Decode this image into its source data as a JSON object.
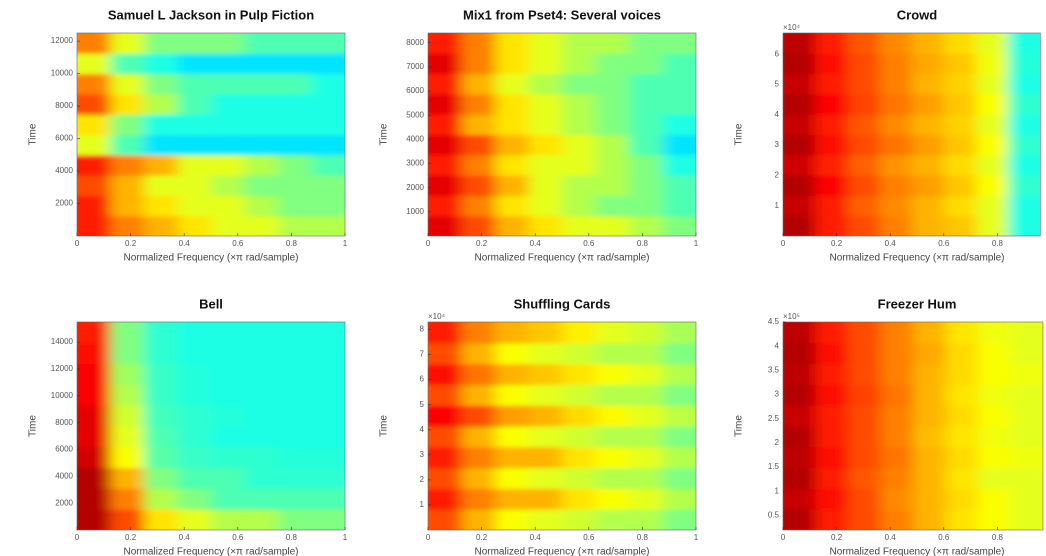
{
  "chart_data": [
    {
      "type": "spectrogram",
      "title": "Samuel L Jackson in Pulp Fiction",
      "xlabel": "Normalized Frequency  (×π rad/sample)",
      "ylabel": "Time",
      "colormap": "jet",
      "xlim": [
        0,
        1
      ],
      "xticks": [
        0,
        0.2,
        0.4,
        0.6,
        0.8,
        1
      ],
      "ylim": [
        0,
        12500
      ],
      "yticks": [
        2000,
        4000,
        6000,
        8000,
        10000,
        12000
      ],
      "z": [
        [
          0.85,
          0.75,
          0.7,
          0.65,
          0.6,
          0.6,
          0.55,
          0.55
        ],
        [
          0.85,
          0.7,
          0.65,
          0.6,
          0.6,
          0.55,
          0.5,
          0.5
        ],
        [
          0.8,
          0.7,
          0.6,
          0.6,
          0.55,
          0.5,
          0.5,
          0.5
        ],
        [
          0.85,
          0.75,
          0.7,
          0.6,
          0.6,
          0.55,
          0.5,
          0.45
        ],
        [
          0.6,
          0.45,
          0.35,
          0.35,
          0.35,
          0.35,
          0.35,
          0.35
        ],
        [
          0.65,
          0.5,
          0.4,
          0.4,
          0.4,
          0.4,
          0.4,
          0.4
        ],
        [
          0.8,
          0.65,
          0.55,
          0.45,
          0.4,
          0.4,
          0.4,
          0.4
        ],
        [
          0.75,
          0.6,
          0.5,
          0.45,
          0.45,
          0.45,
          0.45,
          0.4
        ],
        [
          0.6,
          0.45,
          0.4,
          0.35,
          0.35,
          0.35,
          0.35,
          0.35
        ],
        [
          0.75,
          0.6,
          0.5,
          0.5,
          0.5,
          0.45,
          0.45,
          0.45
        ]
      ]
    },
    {
      "type": "spectrogram",
      "title": "Mix1 from Pset4: Several voices",
      "xlabel": "Normalized Frequency  (×π rad/sample)",
      "ylabel": "Time",
      "colormap": "jet",
      "xlim": [
        0,
        1
      ],
      "xticks": [
        0,
        0.2,
        0.4,
        0.6,
        0.8,
        1
      ],
      "ylim": [
        0,
        8400
      ],
      "yticks": [
        1000,
        2000,
        3000,
        4000,
        5000,
        6000,
        7000,
        8000
      ],
      "z": [
        [
          0.9,
          0.8,
          0.7,
          0.65,
          0.6,
          0.6,
          0.55,
          0.5
        ],
        [
          0.85,
          0.75,
          0.65,
          0.6,
          0.55,
          0.5,
          0.5,
          0.45
        ],
        [
          0.9,
          0.8,
          0.7,
          0.6,
          0.55,
          0.55,
          0.5,
          0.45
        ],
        [
          0.85,
          0.75,
          0.65,
          0.6,
          0.6,
          0.55,
          0.5,
          0.4
        ],
        [
          0.9,
          0.8,
          0.7,
          0.65,
          0.6,
          0.55,
          0.45,
          0.35
        ],
        [
          0.85,
          0.7,
          0.65,
          0.6,
          0.55,
          0.5,
          0.45,
          0.4
        ],
        [
          0.9,
          0.75,
          0.65,
          0.6,
          0.55,
          0.5,
          0.45,
          0.45
        ],
        [
          0.85,
          0.7,
          0.6,
          0.55,
          0.5,
          0.5,
          0.45,
          0.45
        ],
        [
          0.9,
          0.75,
          0.65,
          0.6,
          0.55,
          0.5,
          0.5,
          0.45
        ],
        [
          0.85,
          0.75,
          0.65,
          0.6,
          0.55,
          0.55,
          0.5,
          0.5
        ]
      ]
    },
    {
      "type": "spectrogram",
      "title": "Crowd",
      "xlabel": "Normalized Frequency  (×π rad/sample)",
      "ylabel": "Time",
      "colormap": "jet",
      "y_multiplier": "×10⁴",
      "xlim": [
        0,
        0.96
      ],
      "xticks": [
        0,
        0.2,
        0.4,
        0.6,
        0.8
      ],
      "ylim": [
        0,
        6.7
      ],
      "yticks": [
        1,
        2,
        3,
        4,
        5,
        6
      ],
      "z": [
        [
          0.95,
          0.85,
          0.8,
          0.75,
          0.7,
          0.68,
          0.6,
          0.4
        ],
        [
          0.93,
          0.85,
          0.78,
          0.74,
          0.7,
          0.66,
          0.6,
          0.4
        ],
        [
          0.95,
          0.87,
          0.8,
          0.75,
          0.72,
          0.68,
          0.62,
          0.42
        ],
        [
          0.92,
          0.84,
          0.78,
          0.73,
          0.7,
          0.66,
          0.6,
          0.4
        ],
        [
          0.95,
          0.86,
          0.8,
          0.76,
          0.72,
          0.68,
          0.62,
          0.42
        ],
        [
          0.93,
          0.85,
          0.79,
          0.74,
          0.7,
          0.67,
          0.6,
          0.4
        ],
        [
          0.95,
          0.87,
          0.81,
          0.76,
          0.72,
          0.68,
          0.62,
          0.42
        ],
        [
          0.93,
          0.85,
          0.8,
          0.75,
          0.7,
          0.67,
          0.6,
          0.4
        ],
        [
          0.95,
          0.86,
          0.8,
          0.75,
          0.71,
          0.68,
          0.61,
          0.41
        ],
        [
          0.94,
          0.85,
          0.79,
          0.74,
          0.7,
          0.66,
          0.6,
          0.4
        ]
      ]
    },
    {
      "type": "spectrogram",
      "title": "Bell",
      "xlabel": "Normalized Frequency  (×π rad/sample)",
      "ylabel": "Time",
      "colormap": "jet",
      "xlim": [
        0,
        1
      ],
      "xticks": [
        0,
        0.2,
        0.4,
        0.6,
        0.8,
        1
      ],
      "ylim": [
        0,
        15500
      ],
      "yticks": [
        2000,
        4000,
        6000,
        8000,
        10000,
        12000,
        14000
      ],
      "z": [
        [
          0.95,
          0.8,
          0.65,
          0.6,
          0.55,
          0.55,
          0.5,
          0.5
        ],
        [
          0.95,
          0.75,
          0.55,
          0.5,
          0.45,
          0.45,
          0.45,
          0.45
        ],
        [
          0.95,
          0.7,
          0.5,
          0.45,
          0.45,
          0.42,
          0.42,
          0.42
        ],
        [
          0.92,
          0.62,
          0.46,
          0.43,
          0.42,
          0.42,
          0.41,
          0.41
        ],
        [
          0.9,
          0.6,
          0.45,
          0.42,
          0.4,
          0.4,
          0.4,
          0.4
        ],
        [
          0.9,
          0.58,
          0.44,
          0.42,
          0.41,
          0.4,
          0.4,
          0.4
        ],
        [
          0.88,
          0.55,
          0.43,
          0.41,
          0.4,
          0.4,
          0.4,
          0.4
        ],
        [
          0.88,
          0.53,
          0.43,
          0.41,
          0.4,
          0.4,
          0.4,
          0.4
        ],
        [
          0.86,
          0.5,
          0.42,
          0.4,
          0.4,
          0.4,
          0.4,
          0.4
        ],
        [
          0.85,
          0.5,
          0.42,
          0.4,
          0.4,
          0.4,
          0.4,
          0.4
        ]
      ]
    },
    {
      "type": "spectrogram",
      "title": "Shuffling Cards",
      "xlabel": "Normalized Frequency  (×π rad/sample)",
      "ylabel": "Time",
      "colormap": "jet",
      "y_multiplier": "×10⁴",
      "xlim": [
        0,
        1
      ],
      "xticks": [
        0,
        0.2,
        0.4,
        0.6,
        0.8,
        1
      ],
      "ylim": [
        0,
        8.3
      ],
      "yticks": [
        1,
        2,
        3,
        4,
        5,
        6,
        7,
        8
      ],
      "z": [
        [
          0.8,
          0.7,
          0.62,
          0.6,
          0.58,
          0.55,
          0.55,
          0.5
        ],
        [
          0.85,
          0.75,
          0.7,
          0.7,
          0.65,
          0.62,
          0.6,
          0.55
        ],
        [
          0.8,
          0.7,
          0.62,
          0.6,
          0.58,
          0.55,
          0.55,
          0.5
        ],
        [
          0.85,
          0.75,
          0.7,
          0.7,
          0.65,
          0.62,
          0.6,
          0.55
        ],
        [
          0.8,
          0.7,
          0.62,
          0.6,
          0.58,
          0.55,
          0.55,
          0.5
        ],
        [
          0.88,
          0.8,
          0.72,
          0.7,
          0.66,
          0.63,
          0.6,
          0.56
        ],
        [
          0.8,
          0.7,
          0.62,
          0.6,
          0.58,
          0.55,
          0.55,
          0.5
        ],
        [
          0.86,
          0.76,
          0.7,
          0.68,
          0.65,
          0.62,
          0.6,
          0.55
        ],
        [
          0.8,
          0.7,
          0.62,
          0.6,
          0.58,
          0.55,
          0.55,
          0.5
        ],
        [
          0.85,
          0.75,
          0.7,
          0.68,
          0.64,
          0.6,
          0.58,
          0.54
        ]
      ]
    },
    {
      "type": "spectrogram",
      "title": "Freezer Hum",
      "xlabel": "Normalized Frequency  (×π rad/sample)",
      "ylabel": "Time",
      "colormap": "jet",
      "y_multiplier": "×10⁵",
      "xlim": [
        0,
        0.97
      ],
      "xticks": [
        0,
        0.2,
        0.4,
        0.6,
        0.8
      ],
      "ylim": [
        0.2,
        4.5
      ],
      "yticks": [
        0.5,
        1,
        1.5,
        2,
        2.5,
        3,
        3.5,
        4,
        4.5
      ],
      "z": [
        [
          0.95,
          0.85,
          0.8,
          0.75,
          0.7,
          0.65,
          0.62,
          0.6
        ],
        [
          0.93,
          0.86,
          0.8,
          0.74,
          0.7,
          0.66,
          0.62,
          0.6
        ],
        [
          0.95,
          0.85,
          0.79,
          0.75,
          0.7,
          0.65,
          0.6,
          0.6
        ],
        [
          0.94,
          0.86,
          0.8,
          0.76,
          0.7,
          0.66,
          0.62,
          0.61
        ],
        [
          0.95,
          0.85,
          0.8,
          0.75,
          0.69,
          0.65,
          0.61,
          0.6
        ],
        [
          0.93,
          0.85,
          0.8,
          0.75,
          0.7,
          0.66,
          0.62,
          0.6
        ],
        [
          0.95,
          0.86,
          0.81,
          0.76,
          0.7,
          0.65,
          0.61,
          0.6
        ],
        [
          0.94,
          0.85,
          0.8,
          0.75,
          0.7,
          0.66,
          0.62,
          0.61
        ],
        [
          0.95,
          0.86,
          0.8,
          0.75,
          0.71,
          0.66,
          0.62,
          0.6
        ],
        [
          0.94,
          0.85,
          0.8,
          0.75,
          0.7,
          0.65,
          0.61,
          0.6
        ]
      ]
    }
  ]
}
